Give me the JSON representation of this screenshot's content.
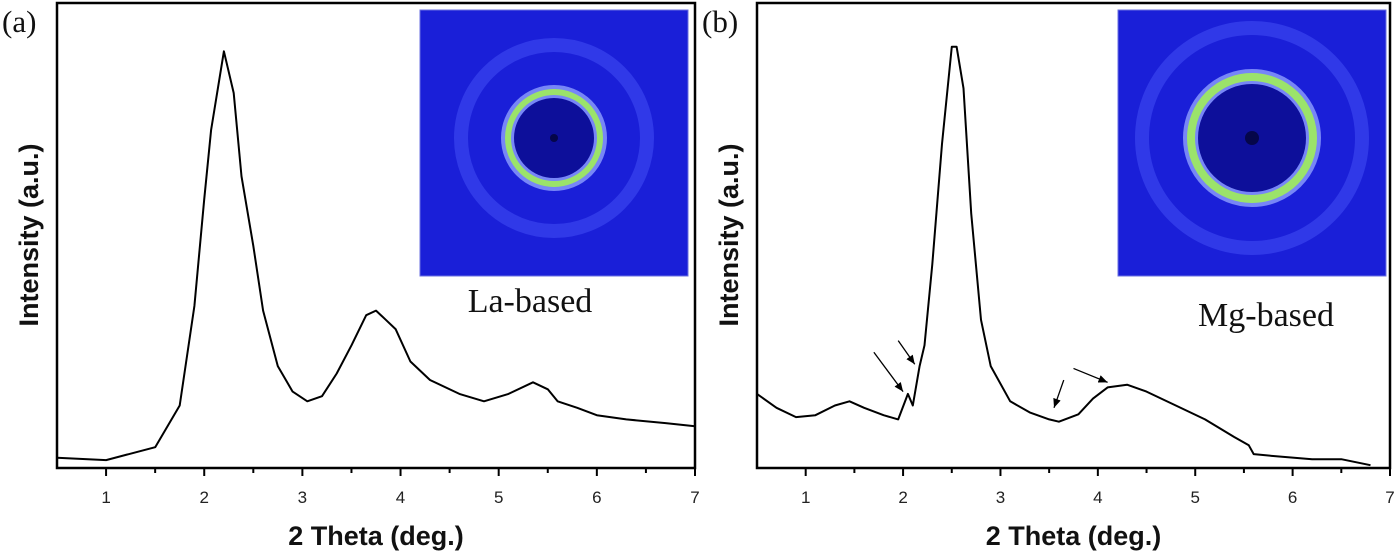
{
  "chart_data": [
    {
      "type": "line",
      "panel_label": "(a)",
      "xlabel": "2 Theta (deg.)",
      "ylabel": "Intensity (a.u.)",
      "xlim": [
        0.5,
        7
      ],
      "ylim": [
        0,
        100
      ],
      "xticks": [
        "1",
        "2",
        "3",
        "4",
        "5",
        "6",
        "7"
      ],
      "grid": false,
      "line_color": "#000000",
      "inset": {
        "label": "La-based",
        "background": "#1a1fd8",
        "ring_color": "#9be36a",
        "center_color": "#0d0f9a"
      },
      "x": [
        0.5,
        1.0,
        1.5,
        1.75,
        1.9,
        2.0,
        2.07,
        2.2,
        2.3,
        2.38,
        2.5,
        2.6,
        2.75,
        2.9,
        3.05,
        3.2,
        3.35,
        3.5,
        3.65,
        3.75,
        3.85,
        3.95,
        4.1,
        4.3,
        4.6,
        4.85,
        5.1,
        5.35,
        5.5,
        5.6,
        5.8,
        6.0,
        6.3,
        6.7,
        7.0
      ],
      "y": [
        2.2,
        1.7,
        4.5,
        13.5,
        35,
        58,
        73,
        90,
        81,
        63,
        48,
        34,
        22,
        16.5,
        14.4,
        15.5,
        20.4,
        26.5,
        33,
        34,
        32,
        30,
        23,
        19,
        16,
        14.4,
        16,
        18.5,
        17,
        14.4,
        13,
        11.4,
        10.5,
        9.7,
        9
      ]
    },
    {
      "type": "line",
      "panel_label": "(b)",
      "xlabel": "2 Theta (deg.)",
      "ylabel": "Intensity (a.u.)",
      "xlim": [
        0.5,
        7
      ],
      "ylim": [
        0,
        100
      ],
      "xticks": [
        "1",
        "2",
        "3",
        "4",
        "5",
        "6",
        "7"
      ],
      "grid": false,
      "line_color": "#000000",
      "inset": {
        "label": "Mg-based",
        "background": "#1a1fd8",
        "ring_color": "#9be36a",
        "center_color": "#0d0f9a"
      },
      "x": [
        0.5,
        0.7,
        0.9,
        1.1,
        1.3,
        1.45,
        1.6,
        1.8,
        1.95,
        2.05,
        2.1,
        2.17,
        2.22,
        2.3,
        2.4,
        2.5,
        2.55,
        2.62,
        2.7,
        2.8,
        2.9,
        3.1,
        3.3,
        3.5,
        3.6,
        3.8,
        3.95,
        4.1,
        4.3,
        4.5,
        4.8,
        5.1,
        5.4,
        5.55,
        5.6,
        5.8,
        6.2,
        6.5,
        6.8
      ],
      "y": [
        16,
        13,
        11,
        11.4,
        13.5,
        14.4,
        13,
        11.4,
        10.5,
        16,
        13.5,
        22,
        26.5,
        44,
        70,
        91,
        91,
        82,
        55,
        32,
        22,
        14.4,
        12,
        10.5,
        10,
        11.6,
        15,
        17.4,
        18,
        16.5,
        13.5,
        10.5,
        6.7,
        4.9,
        3,
        2.6,
        1.9,
        1.9,
        0.6
      ],
      "annotations": [
        {
          "type": "arrow",
          "from": [
            1.7,
            25
          ],
          "to": [
            2.0,
            16.5
          ]
        },
        {
          "type": "arrow",
          "from": [
            1.95,
            27.5
          ],
          "to": [
            2.12,
            22.4
          ]
        },
        {
          "type": "arrow",
          "from": [
            3.65,
            19
          ],
          "to": [
            3.55,
            13
          ]
        },
        {
          "type": "arrow",
          "from": [
            3.75,
            21.5
          ],
          "to": [
            4.1,
            18.5
          ]
        }
      ]
    }
  ]
}
